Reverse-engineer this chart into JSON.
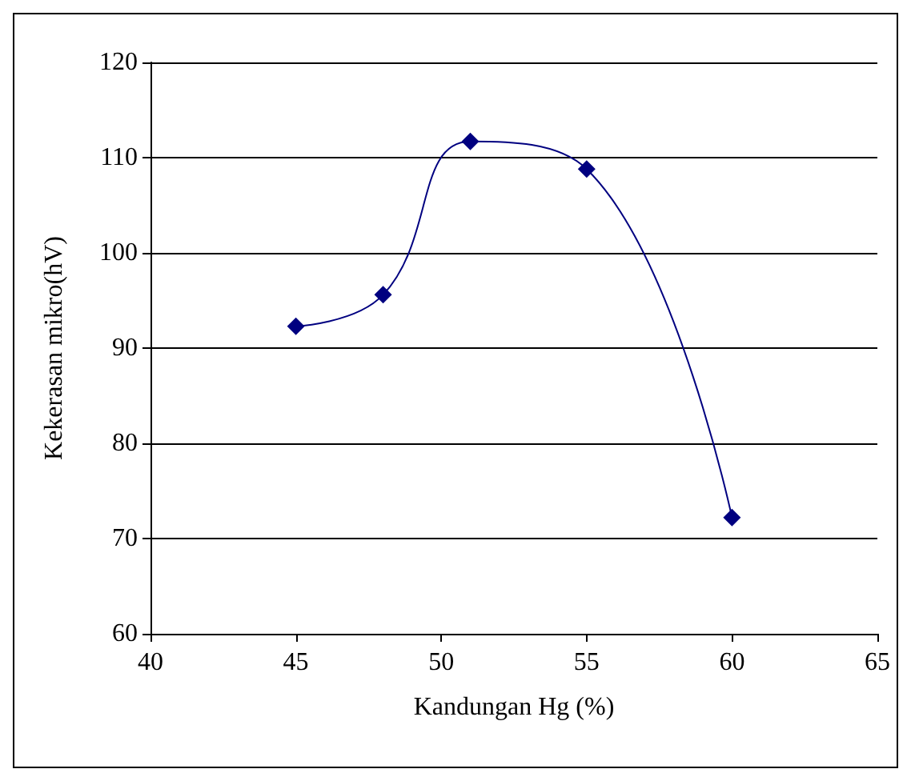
{
  "chart_data": {
    "type": "line",
    "xlabel": "Kandungan Hg (%)",
    "ylabel": "Kekerasan mikro(hV)",
    "x": [
      45,
      48,
      51,
      55,
      60
    ],
    "series": [
      {
        "color": "#000080",
        "values": [
          92.3,
          95.6,
          111.7,
          108.8,
          72.2
        ]
      }
    ],
    "xlim": [
      40,
      65
    ],
    "xticks": [
      40,
      45,
      50,
      55,
      60,
      65
    ],
    "ylim": [
      60,
      120
    ],
    "yticks": [
      60,
      70,
      80,
      90,
      100,
      110,
      120
    ],
    "grid": "y",
    "marker": "diamond",
    "line_style": "solid"
  }
}
